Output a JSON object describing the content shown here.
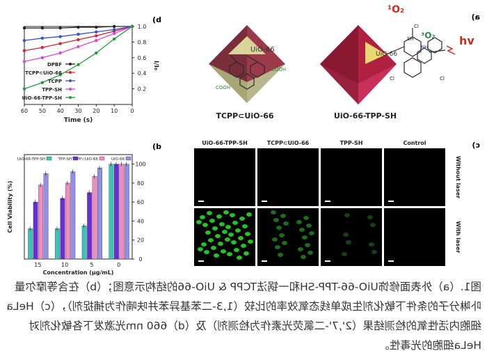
{
  "chart_data": [
    {
      "type": "line",
      "panel": "b",
      "xlabel": "Time (s)",
      "ylabel": "I/I₀",
      "xlim": [
        0,
        60
      ],
      "ylim": [
        0,
        1.0
      ],
      "x_ticks": [
        0,
        10,
        20,
        30,
        40,
        50,
        60
      ],
      "y_ticks": [
        0.2,
        0.4,
        0.6,
        0.8,
        1.0
      ],
      "x": [
        0,
        10,
        20,
        30,
        40,
        50,
        60
      ],
      "series": [
        {
          "name": "DPBF",
          "color": "#222222",
          "values": [
            1.0,
            1.0,
            0.99,
            0.99,
            0.98,
            0.98,
            0.98
          ]
        },
        {
          "name": "TCPP⊂UiO-66",
          "color": "#e0202a",
          "values": [
            1.0,
            0.94,
            0.88,
            0.83,
            0.78,
            0.73,
            0.69
          ]
        },
        {
          "name": "TCPP",
          "color": "#3050d8",
          "values": [
            1.0,
            0.96,
            0.93,
            0.9,
            0.87,
            0.85,
            0.82
          ]
        },
        {
          "name": "TPP-SH",
          "color": "#e040e0",
          "values": [
            1.0,
            0.91,
            0.82,
            0.74,
            0.66,
            0.6,
            0.55
          ]
        },
        {
          "name": "UiO-66-TPP-SH",
          "color": "#1f9a3a",
          "values": [
            1.0,
            0.84,
            0.66,
            0.51,
            0.38,
            0.28,
            0.2
          ]
        }
      ]
    },
    {
      "type": "bar",
      "panel": "d",
      "xlabel": "Concentration (μg/mL)",
      "ylabel": "Cell Viability (%)",
      "categories": [
        "0",
        "5",
        "10",
        "15"
      ],
      "y_ticks": [
        0,
        20,
        40,
        60,
        80,
        100
      ],
      "ylim": [
        0,
        110
      ],
      "series": [
        {
          "name": "UiO-66",
          "color": "#9090e8",
          "values": [
            100,
            96,
            92,
            90
          ]
        },
        {
          "name": "TCPP⊂UiO-66",
          "color": "#f08cc0",
          "values": [
            100,
            87,
            80,
            78
          ]
        },
        {
          "name": "TPP-SH",
          "color": "#6a2ed6",
          "values": [
            100,
            70,
            64,
            60
          ]
        },
        {
          "name": "UiO-66-TPP-SH",
          "color": "#3cc3b8",
          "values": [
            100,
            35,
            32,
            32
          ]
        }
      ]
    }
  ],
  "figure": {
    "panel_labels": {
      "a": "a)",
      "b": "b)",
      "c": "c)",
      "d": "d)"
    },
    "structure_labels": {
      "left": "TCPP⊂UiO-66",
      "right": "UiO-66-TPP-SH"
    },
    "octa_labels": {
      "left": "UiO-66",
      "right": "UiO-66"
    },
    "mol_labels": {
      "cooh": "COOH",
      "sh": "SH",
      "cl": "Cl",
      "nh": "NH",
      "o2": "³O₂",
      "o1": "¹O₂",
      "hv": "hv"
    },
    "cell_columns": [
      "Control",
      "TPP-SH",
      "TCPP⊂UiO-66",
      "UiO-66-TPP-SH"
    ],
    "cell_rows": [
      "Without laser",
      "With laser"
    ],
    "cell_green_intensity": [
      0,
      0.05,
      0.35,
      0.8
    ]
  },
  "caption": "图1.（a）外表面修饰UiO-66-TPP-SH和一锅法TCPP & UiO-66的结构示意图；（b）在含等摩尔量卟啉分子的条件下敏化剂生成单线态氧效率的比较（1,3-二苯基异苯并呋喃作为捕捉剂），（c）HeLa细胞内活性氧的检测结果（2',7'-二氯荧光素作为检测剂）及（d）660 nm光激发下各敏化剂对HeLa细胞的光毒性。"
}
